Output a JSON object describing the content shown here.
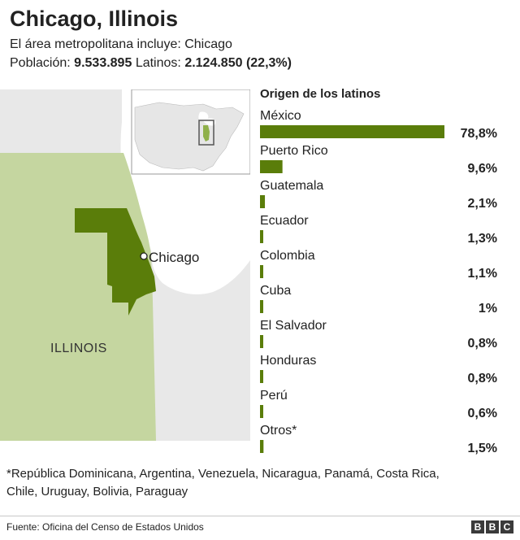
{
  "header": {
    "title": "Chicago, Illinois",
    "metro_label": "El área metropolitana incluye: Chicago",
    "population_label": "Población:",
    "population_value": "9.533.895",
    "latinos_label": "Latinos:",
    "latinos_value": "2.124.850 (22,3%)"
  },
  "map": {
    "state_label": "ILLINOIS",
    "city_label": "Chicago",
    "colors": {
      "state": "#c5d6a0",
      "metro": "#5a7d0a",
      "water": "#ffffff",
      "land": "#e8e8e8"
    }
  },
  "chart_data": {
    "type": "bar",
    "title": "Origen de los latinos",
    "categories": [
      "México",
      "Puerto Rico",
      "Guatemala",
      "Ecuador",
      "Colombia",
      "Cuba",
      "El Salvador",
      "Honduras",
      "Perú",
      "Otros*"
    ],
    "values": [
      78.8,
      9.6,
      2.1,
      1.3,
      1.1,
      1.0,
      0.8,
      0.8,
      0.6,
      1.5
    ],
    "value_labels": [
      "78,8%",
      "9,6%",
      "2,1%",
      "1,3%",
      "1,1%",
      "1%",
      "0,8%",
      "0,8%",
      "0,6%",
      "1,5%"
    ],
    "unit": "%",
    "color": "#5a7d0a"
  },
  "footnote": "*República Dominicana, Argentina, Venezuela, Nicaragua, Panamá, Costa Rica, Chile, Uruguay, Bolivia, Paraguay",
  "footer": {
    "source": "Fuente: Oficina del Censo de Estados Unidos",
    "logo_letters": [
      "B",
      "B",
      "C"
    ]
  }
}
